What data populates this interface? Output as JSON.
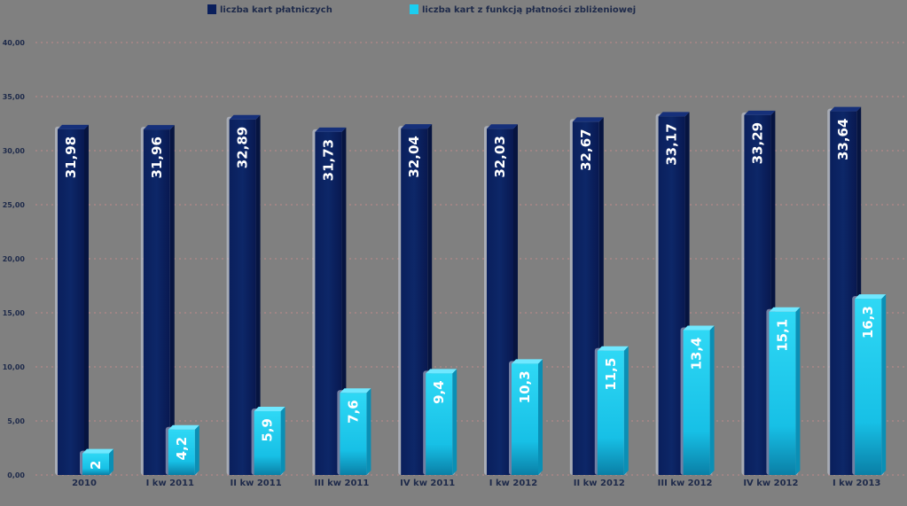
{
  "chart_data": {
    "type": "bar",
    "title": "",
    "xlabel": "",
    "ylabel": "",
    "ylim": [
      0,
      40
    ],
    "yticks": [
      "0,00",
      "5,00",
      "10,00",
      "15,00",
      "20,00",
      "25,00",
      "30,00",
      "35,00",
      "40,00"
    ],
    "categories": [
      "2010",
      "I kw 2011",
      "II kw 2011",
      "III kw 2011",
      "IV kw 2011",
      "I kw 2012",
      "II kw 2012",
      "III kw 2012",
      "IV kw 2012",
      "I kw 2013"
    ],
    "series": [
      {
        "name": "liczba kart płatniczych",
        "values": [
          31.98,
          31.96,
          32.89,
          31.73,
          32.04,
          32.03,
          32.67,
          33.17,
          33.29,
          33.64
        ],
        "labels": [
          "31,98",
          "31,96",
          "32,89",
          "31,73",
          "32,04",
          "32,03",
          "32,67",
          "33,17",
          "33,29",
          "33,64"
        ]
      },
      {
        "name": "liczba kart z funkcją płatności zbliżeniowej",
        "values": [
          2,
          4.2,
          5.9,
          7.6,
          9.4,
          10.3,
          11.5,
          13.4,
          15.1,
          16.3
        ],
        "labels": [
          "2",
          "4,2",
          "5,9",
          "7,6",
          "9,4",
          "10,3",
          "11,5",
          "13,4",
          "15,1",
          "16,3"
        ]
      }
    ],
    "grid": true,
    "legend_position": "top"
  },
  "colors": {
    "background": "#808080",
    "series1": "#0a1f5c",
    "series2": "#19c6ea",
    "grid": "#c08a8a",
    "text": "#1e2a4a"
  }
}
